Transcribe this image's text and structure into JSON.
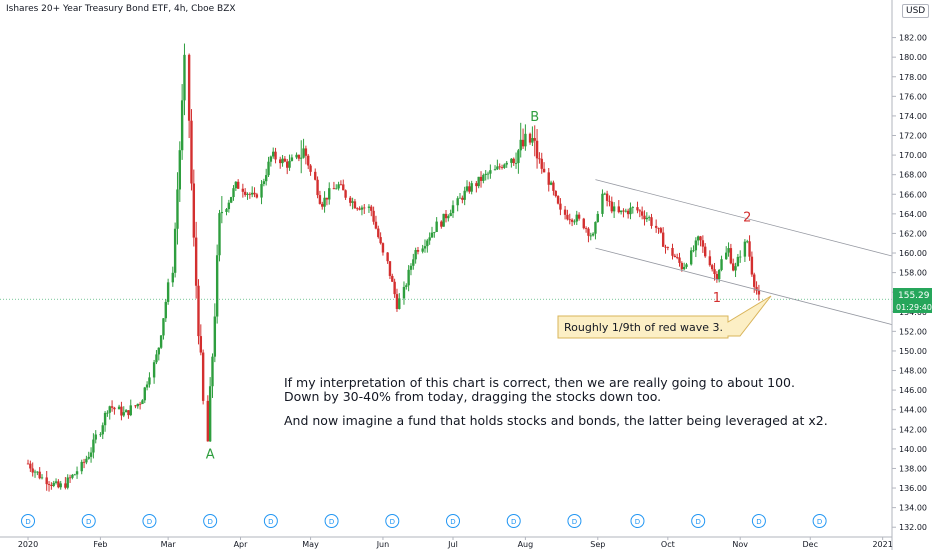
{
  "header": {
    "title": "Ishares 20+ Year Treasury Bond ETF, 4h, Cboe BZX",
    "currency": "USD"
  },
  "colors": {
    "up": "#26a69a",
    "up_candle": "#2e9e3e",
    "down_candle": "#d32f2f",
    "price_tag": "#26a65b",
    "wave_label_red": "#d32f2f",
    "wave_label_green": "#2e9e3e",
    "axis_text": "#131722"
  },
  "price_tag": {
    "value": "155.29",
    "countdown": "01:29:40"
  },
  "chart_data": {
    "type": "candlestick",
    "title": "Ishares 20+ Year Treasury Bond ETF, 4h, Cboe BZX",
    "y_ticks": [
      "182.00",
      "180.00",
      "178.00",
      "176.00",
      "174.00",
      "172.00",
      "170.00",
      "168.00",
      "166.00",
      "164.00",
      "162.00",
      "160.00",
      "158.00",
      "156.00",
      "154.00",
      "152.00",
      "150.00",
      "148.00",
      "146.00",
      "144.00",
      "142.00",
      "140.00",
      "138.00",
      "136.00",
      "134.00",
      "132.00"
    ],
    "y_range": [
      131,
      184
    ],
    "x_ticks": [
      "2020",
      "Feb",
      "Mar",
      "Apr",
      "May",
      "Jun",
      "Jul",
      "Aug",
      "Sep",
      "Oct",
      "Nov",
      "Dec",
      "2021"
    ],
    "dividend_marker": "D",
    "dividend_count": 14,
    "close_path": [
      [
        "2020-01-01",
        138.5
      ],
      [
        "2020-01-08",
        137.0
      ],
      [
        "2020-01-15",
        136.0
      ],
      [
        "2020-01-22",
        137.5
      ],
      [
        "2020-01-29",
        140.0
      ],
      [
        "2020-02-05",
        144.5
      ],
      [
        "2020-02-12",
        143.5
      ],
      [
        "2020-02-19",
        145.0
      ],
      [
        "2020-02-26",
        150.0
      ],
      [
        "2020-03-03",
        158.0
      ],
      [
        "2020-03-09",
        179.5
      ],
      [
        "2020-03-12",
        162.0
      ],
      [
        "2020-03-18",
        140.5
      ],
      [
        "2020-03-24",
        164.0
      ],
      [
        "2020-03-31",
        167.0
      ],
      [
        "2020-04-08",
        165.5
      ],
      [
        "2020-04-15",
        170.0
      ],
      [
        "2020-04-22",
        169.0
      ],
      [
        "2020-04-29",
        170.5
      ],
      [
        "2020-05-06",
        165.0
      ],
      [
        "2020-05-13",
        167.0
      ],
      [
        "2020-05-20",
        165.0
      ],
      [
        "2020-05-27",
        164.5
      ],
      [
        "2020-06-03",
        159.0
      ],
      [
        "2020-06-08",
        154.5
      ],
      [
        "2020-06-15",
        160.0
      ],
      [
        "2020-06-22",
        162.0
      ],
      [
        "2020-06-29",
        164.0
      ],
      [
        "2020-07-06",
        166.0
      ],
      [
        "2020-07-13",
        167.5
      ],
      [
        "2020-07-20",
        168.5
      ],
      [
        "2020-07-27",
        170.0
      ],
      [
        "2020-08-04",
        171.5
      ],
      [
        "2020-08-10",
        168.0
      ],
      [
        "2020-08-17",
        164.0
      ],
      [
        "2020-08-24",
        163.5
      ],
      [
        "2020-08-31",
        161.5
      ],
      [
        "2020-09-03",
        166.0
      ],
      [
        "2020-09-10",
        164.0
      ],
      [
        "2020-09-17",
        164.5
      ],
      [
        "2020-09-24",
        163.5
      ],
      [
        "2020-10-01",
        160.5
      ],
      [
        "2020-10-08",
        158.5
      ],
      [
        "2020-10-15",
        161.5
      ],
      [
        "2020-10-22",
        157.5
      ],
      [
        "2020-10-27",
        160.5
      ],
      [
        "2020-10-30",
        158.0
      ],
      [
        "2020-11-04",
        161.5
      ],
      [
        "2020-11-07",
        157.5
      ],
      [
        "2020-11-10",
        155.29
      ]
    ],
    "trend_channel": [
      {
        "from": [
          "2020-08-31",
          167.5
        ],
        "to": [
          "2020-12-31",
          160.0
        ]
      },
      {
        "from": [
          "2020-08-31",
          160.5
        ],
        "to": [
          "2020-12-31",
          153.0
        ]
      }
    ]
  },
  "annotations": {
    "wave_labels": [
      {
        "text": "A",
        "date": "2020-03-19",
        "price": 139.0,
        "color": "green"
      },
      {
        "text": "B",
        "date": "2020-08-05",
        "price": 173.5,
        "color": "green"
      },
      {
        "text": "1",
        "date": "2020-10-22",
        "price": 155.0,
        "color": "red"
      },
      {
        "text": "2",
        "date": "2020-11-04",
        "price": 163.2,
        "color": "red"
      }
    ],
    "callout": "Roughly 1/9th of red wave 3.",
    "note_line1": "If my interpretation of this chart is correct, then we are really going to about 100.",
    "note_line2": "Down by 30-40% from today, dragging the stocks down too.",
    "note_line3": "And now imagine a fund that holds stocks and bonds, the latter being leveraged at x2."
  }
}
